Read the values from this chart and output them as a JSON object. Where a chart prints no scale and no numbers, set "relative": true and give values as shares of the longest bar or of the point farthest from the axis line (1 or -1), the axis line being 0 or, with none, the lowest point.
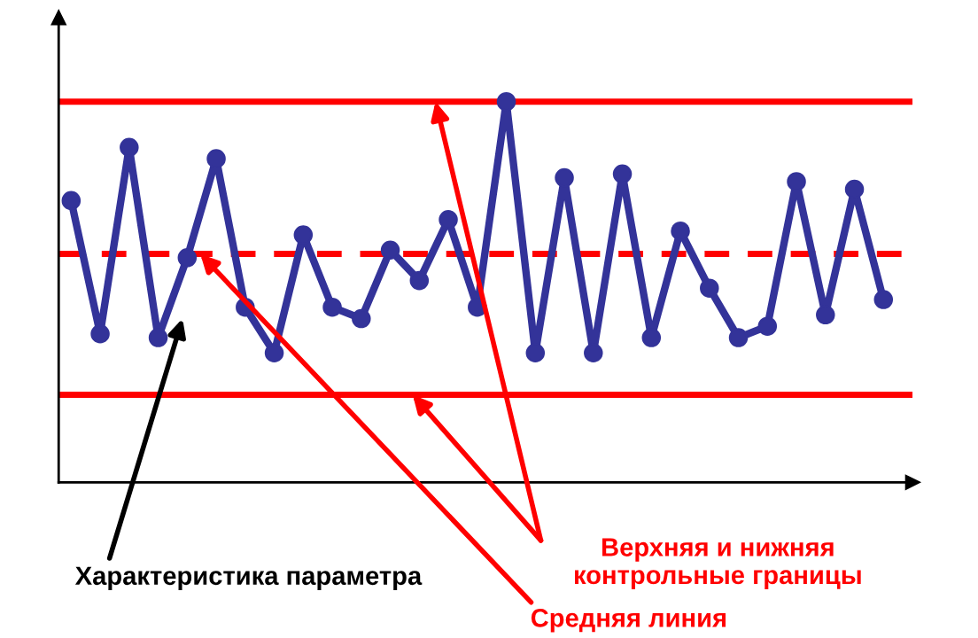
{
  "chart_data": {
    "type": "line",
    "relative": true,
    "marker": "circle",
    "line_style": "solid",
    "categories": [
      null,
      null,
      null,
      null,
      null,
      null,
      null,
      null,
      null,
      null,
      null,
      null,
      null,
      null,
      null,
      null,
      null,
      null,
      null,
      null,
      null,
      null,
      null,
      null,
      null,
      null,
      null,
      null,
      null
    ],
    "series": [
      {
        "color": "#333399",
        "values": [
          0.74,
          0.39,
          0.88,
          0.38,
          0.59,
          0.85,
          0.46,
          0.34,
          0.65,
          0.46,
          0.43,
          0.61,
          0.53,
          0.69,
          0.46,
          1.0,
          0.34,
          0.8,
          0.34,
          0.81,
          0.38,
          0.66,
          0.51,
          0.38,
          0.41,
          0.79,
          0.44,
          0.77,
          0.48
        ]
      }
    ],
    "ref_lines": [
      {
        "axis": "y",
        "value": 1.0,
        "color": "#ff0000",
        "line_style": "solid"
      },
      {
        "axis": "y",
        "value": 0.6,
        "color": "#ff0000",
        "line_style": "dashed"
      },
      {
        "axis": "y",
        "value": 0.23,
        "color": "#ff0000",
        "line_style": "solid"
      }
    ],
    "annotations": [
      "Характеристика параметра",
      "Верхняя и нижняя\nконтрольные границы",
      "Средняя линия"
    ]
  }
}
